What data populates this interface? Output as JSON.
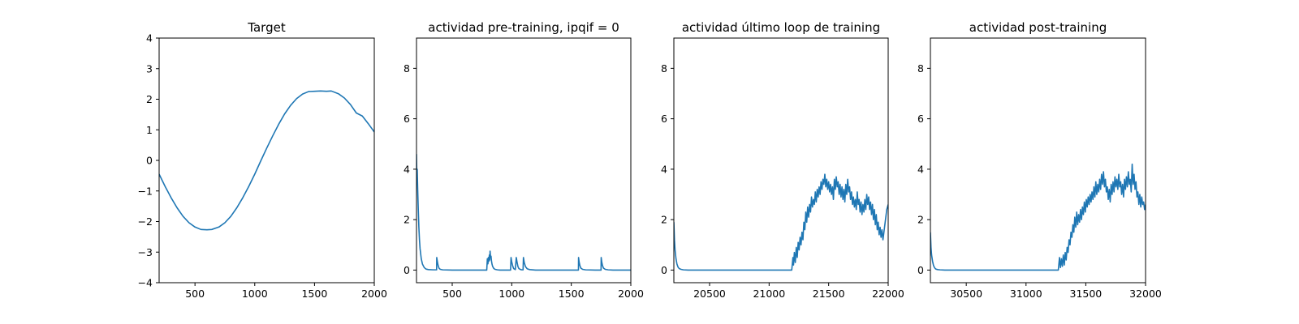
{
  "chart_data": [
    {
      "type": "line",
      "title": "Target",
      "xlabel": "",
      "ylabel": "",
      "xlim": [
        200,
        2000
      ],
      "ylim": [
        -4,
        4
      ],
      "xticks": [
        500,
        1000,
        1500,
        2000
      ],
      "yticks": [
        -4,
        -3,
        -2,
        -1,
        0,
        1,
        2,
        3,
        4
      ],
      "xtick_labels": [
        "500",
        "1000",
        "1500",
        "2000"
      ],
      "ytick_labels": [
        "−4",
        "−3",
        "−2",
        "−1",
        "0",
        "1",
        "2",
        "3",
        "4"
      ],
      "series": [
        {
          "x": [
            200,
            250,
            300,
            350,
            400,
            450,
            500,
            550,
            600,
            640,
            700,
            750,
            800,
            850,
            900,
            950,
            1000,
            1050,
            1100,
            1150,
            1200,
            1250,
            1300,
            1350,
            1400,
            1450,
            1500,
            1550,
            1600,
            1640,
            1700,
            1750,
            1800,
            1850,
            1900,
            1950,
            2000
          ],
          "y": [
            -0.45,
            -0.85,
            -1.22,
            -1.55,
            -1.83,
            -2.04,
            -2.18,
            -2.26,
            -2.27,
            -2.26,
            -2.18,
            -2.04,
            -1.83,
            -1.55,
            -1.22,
            -0.85,
            -0.45,
            -0.02,
            0.4,
            0.8,
            1.18,
            1.52,
            1.8,
            2.02,
            2.17,
            2.25,
            2.26,
            2.27,
            2.26,
            2.27,
            2.18,
            2.04,
            1.83,
            1.55,
            1.45,
            1.2,
            0.93
          ]
        }
      ]
    },
    {
      "type": "line",
      "title": "actividad pre-training, ipqif = 0",
      "xlabel": "",
      "ylabel": "",
      "xlim": [
        200,
        2000
      ],
      "ylim": [
        -0.5,
        9.2
      ],
      "xticks": [
        500,
        1000,
        1500,
        2000
      ],
      "yticks": [
        0,
        2,
        4,
        6,
        8
      ],
      "xtick_labels": [
        "500",
        "1000",
        "1500",
        "2000"
      ],
      "ytick_labels": [
        "0",
        "2",
        "4",
        "6",
        "8"
      ],
      "series": [
        {
          "x": [
            200,
            203,
            206,
            210,
            215,
            220,
            225,
            230,
            240,
            250,
            265,
            280,
            300,
            340,
            369,
            370,
            375,
            380,
            385,
            390,
            400,
            420,
            500,
            600,
            700,
            790,
            795,
            800,
            804,
            808,
            812,
            815,
            818,
            822,
            826,
            830,
            835,
            840,
            850,
            860,
            880,
            900,
            990,
            994,
            1000,
            1008,
            1016,
            1030,
            1038,
            1045,
            1052,
            1060,
            1075,
            1085,
            1095,
            1098,
            1105,
            1115,
            1130,
            1150,
            1200,
            1300,
            1400,
            1500,
            1560,
            1561,
            1566,
            1572,
            1580,
            1595,
            1620,
            1700,
            1750,
            1751,
            1756,
            1762,
            1770,
            1785,
            1810,
            1850,
            1900,
            1950,
            2000
          ],
          "y": [
            4.6,
            3.7,
            4.0,
            3.2,
            2.4,
            1.7,
            1.2,
            0.85,
            0.45,
            0.24,
            0.1,
            0.04,
            0.02,
            0.01,
            0.01,
            0.5,
            0.35,
            0.22,
            0.13,
            0.07,
            0.03,
            0.01,
            0.0,
            0.0,
            0.0,
            0.0,
            0.45,
            0.25,
            0.5,
            0.35,
            0.6,
            0.4,
            0.75,
            0.5,
            0.55,
            0.35,
            0.22,
            0.14,
            0.06,
            0.03,
            0.01,
            0.0,
            0.0,
            0.5,
            0.32,
            0.16,
            0.06,
            0.02,
            0.5,
            0.3,
            0.14,
            0.06,
            0.02,
            0.01,
            0.01,
            0.5,
            0.3,
            0.14,
            0.05,
            0.02,
            0.0,
            0.0,
            0.0,
            0.0,
            0.0,
            0.5,
            0.32,
            0.18,
            0.08,
            0.03,
            0.01,
            0.0,
            0.0,
            0.5,
            0.32,
            0.18,
            0.08,
            0.03,
            0.01,
            0.0,
            0.0,
            0.0,
            0.0
          ]
        }
      ]
    },
    {
      "type": "line",
      "title": "actividad último loop de training",
      "xlabel": "",
      "ylabel": "",
      "xlim": [
        20200,
        22000
      ],
      "ylim": [
        -0.5,
        9.2
      ],
      "xticks": [
        20500,
        21000,
        21500,
        22000
      ],
      "yticks": [
        0,
        2,
        4,
        6,
        8
      ],
      "xtick_labels": [
        "20500",
        "21000",
        "21500",
        "22000"
      ],
      "ytick_labels": [
        "0",
        "2",
        "4",
        "6",
        "8"
      ],
      "series": [
        {
          "x": [
            20200,
            20205,
            20210,
            20218,
            20226,
            20235,
            20245,
            20260,
            20280,
            20320,
            20400,
            20600,
            20800,
            21000,
            21100,
            21190,
            21200,
            21205,
            21212,
            21220,
            21228,
            21236,
            21244,
            21252,
            21260,
            21268,
            21276,
            21284,
            21292,
            21300,
            21308,
            21316,
            21324,
            21332,
            21340,
            21348,
            21356,
            21364,
            21372,
            21380,
            21388,
            21396,
            21404,
            21412,
            21420,
            21428,
            21436,
            21444,
            21452,
            21460,
            21468,
            21476,
            21484,
            21492,
            21500,
            21508,
            21516,
            21524,
            21532,
            21540,
            21548,
            21556,
            21564,
            21572,
            21580,
            21588,
            21596,
            21604,
            21612,
            21620,
            21628,
            21636,
            21644,
            21652,
            21660,
            21668,
            21676,
            21684,
            21692,
            21700,
            21708,
            21716,
            21724,
            21732,
            21740,
            21748,
            21756,
            21764,
            21772,
            21780,
            21788,
            21796,
            21804,
            21812,
            21820,
            21828,
            21836,
            21844,
            21852,
            21860,
            21868,
            21876,
            21884,
            21892,
            21900,
            21908,
            21916,
            21924,
            21932,
            21940,
            21948,
            21956,
            21964,
            21972,
            21980,
            21988,
            22000
          ],
          "y": [
            1.9,
            1.2,
            0.8,
            0.45,
            0.24,
            0.12,
            0.06,
            0.03,
            0.01,
            0.0,
            0.0,
            0.0,
            0.0,
            0.0,
            0.0,
            0.0,
            0.5,
            0.2,
            0.7,
            0.3,
            0.9,
            0.5,
            1.1,
            0.8,
            1.3,
            1.0,
            1.5,
            1.2,
            1.9,
            1.6,
            2.3,
            1.9,
            2.5,
            2.1,
            2.6,
            2.3,
            2.9,
            2.5,
            2.8,
            2.6,
            3.1,
            2.7,
            3.2,
            2.9,
            3.3,
            3.0,
            3.5,
            3.2,
            3.6,
            3.4,
            3.8,
            3.3,
            3.6,
            3.2,
            3.5,
            3.1,
            3.4,
            3.0,
            3.3,
            2.8,
            3.6,
            3.2,
            3.7,
            3.3,
            3.5,
            3.0,
            3.4,
            2.9,
            3.3,
            2.8,
            3.2,
            2.7,
            3.4,
            3.0,
            3.6,
            3.1,
            3.3,
            2.8,
            3.1,
            2.6,
            2.9,
            2.5,
            2.8,
            2.4,
            3.1,
            2.6,
            2.8,
            2.3,
            2.7,
            2.2,
            2.6,
            2.3,
            2.8,
            2.4,
            3.0,
            2.6,
            2.9,
            2.4,
            2.7,
            2.2,
            2.6,
            2.0,
            2.4,
            1.8,
            2.2,
            1.6,
            1.9,
            1.4,
            1.7,
            1.3,
            1.6,
            1.2,
            1.5,
            1.8,
            2.1,
            2.4,
            2.6
          ]
        }
      ]
    },
    {
      "type": "line",
      "title": "actividad post-training",
      "xlabel": "",
      "ylabel": "",
      "xlim": [
        30200,
        32000
      ],
      "ylim": [
        -0.5,
        9.2
      ],
      "xticks": [
        30500,
        31000,
        31500,
        32000
      ],
      "yticks": [
        0,
        2,
        4,
        6,
        8
      ],
      "xtick_labels": [
        "30500",
        "31000",
        "31500",
        "32000"
      ],
      "ytick_labels": [
        "0",
        "2",
        "4",
        "6",
        "8"
      ],
      "series": [
        {
          "x": [
            30200,
            30205,
            30210,
            30218,
            30226,
            30235,
            30245,
            30260,
            30280,
            30320,
            30400,
            30600,
            30800,
            31000,
            31200,
            31270,
            31280,
            31288,
            31296,
            31304,
            31312,
            31320,
            31328,
            31336,
            31344,
            31352,
            31360,
            31368,
            31376,
            31384,
            31392,
            31400,
            31408,
            31416,
            31424,
            31432,
            31440,
            31448,
            31456,
            31464,
            31472,
            31480,
            31488,
            31496,
            31504,
            31512,
            31520,
            31528,
            31536,
            31544,
            31552,
            31560,
            31568,
            31576,
            31584,
            31592,
            31600,
            31608,
            31616,
            31624,
            31632,
            31640,
            31648,
            31656,
            31664,
            31672,
            31680,
            31688,
            31696,
            31704,
            31712,
            31720,
            31728,
            31736,
            31744,
            31752,
            31760,
            31768,
            31776,
            31784,
            31792,
            31800,
            31808,
            31816,
            31824,
            31832,
            31840,
            31848,
            31856,
            31864,
            31872,
            31880,
            31888,
            31896,
            31904,
            31912,
            31920,
            31928,
            31936,
            31944,
            31952,
            31960,
            31968,
            31976,
            31984,
            31992,
            32000
          ],
          "y": [
            1.5,
            0.9,
            0.6,
            0.35,
            0.18,
            0.09,
            0.04,
            0.02,
            0.01,
            0.0,
            0.0,
            0.0,
            0.0,
            0.0,
            0.0,
            0.0,
            0.5,
            0.1,
            0.45,
            0.15,
            0.6,
            0.2,
            0.7,
            0.4,
            0.9,
            0.7,
            1.2,
            1.0,
            1.5,
            1.3,
            1.8,
            1.5,
            2.1,
            1.7,
            2.3,
            1.8,
            2.2,
            1.9,
            2.4,
            2.0,
            2.5,
            2.2,
            2.7,
            2.3,
            2.8,
            2.5,
            2.9,
            2.6,
            3.0,
            2.7,
            3.1,
            2.8,
            3.3,
            2.9,
            3.5,
            3.0,
            3.4,
            3.1,
            3.6,
            3.2,
            3.8,
            3.4,
            3.9,
            3.3,
            3.6,
            3.1,
            3.3,
            2.8,
            3.2,
            2.7,
            3.4,
            3.0,
            3.5,
            3.1,
            3.7,
            3.3,
            3.6,
            3.2,
            3.8,
            3.3,
            3.5,
            3.0,
            3.4,
            2.9,
            3.6,
            3.2,
            3.7,
            3.3,
            3.9,
            3.4,
            3.6,
            3.1,
            4.2,
            3.4,
            3.8,
            3.2,
            3.5,
            2.9,
            3.1,
            2.6,
            3.0,
            2.5,
            2.9,
            2.6,
            2.7,
            2.4,
            2.6
          ]
        }
      ]
    }
  ]
}
